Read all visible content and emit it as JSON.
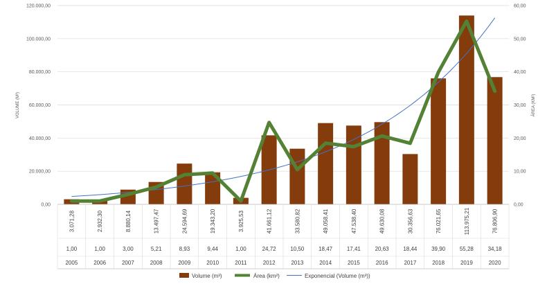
{
  "chart_data": {
    "type": "bar",
    "categories": [
      "2005",
      "2006",
      "2007",
      "2008",
      "2009",
      "2010",
      "2011",
      "2012",
      "2013",
      "2014",
      "2015",
      "2016",
      "2017",
      "2018",
      "2019",
      "2020"
    ],
    "series": [
      {
        "name": "Volume (m³)",
        "type": "bar",
        "axis": "left",
        "color": "#843C0C",
        "values": [
          3071.28,
          2932.3,
          8880.14,
          13497.47,
          24594.69,
          19343.2,
          3925.53,
          41661.12,
          33580.82,
          49058.41,
          47538.4,
          49630.08,
          30356.63,
          76021.65,
          113975.21,
          76806.9
        ],
        "labels": [
          "3.071,28",
          "2.932,30",
          "8.880,14",
          "13.497,47",
          "24.594,69",
          "19.343,20",
          "3.925,53",
          "41.661,12",
          "33.580,82",
          "49.058,41",
          "47.538,40",
          "49.630,08",
          "30.356,63",
          "76.021,65",
          "113.975,21",
          "76.806,90"
        ]
      },
      {
        "name": "Área (km²)",
        "type": "line",
        "axis": "right",
        "color": "#548235",
        "values": [
          1.0,
          1.0,
          3.0,
          5.21,
          8.93,
          9.44,
          1.0,
          24.72,
          10.5,
          18.47,
          17.41,
          20.63,
          18.44,
          39.9,
          55.28,
          34.18
        ],
        "labels": [
          "1,00",
          "1,00",
          "3,00",
          "5,21",
          "8,93",
          "9,44",
          "1,00",
          "24,72",
          "10,50",
          "18,47",
          "17,41",
          "20,63",
          "18,44",
          "39,90",
          "55,28",
          "34,18"
        ]
      },
      {
        "name": "Exponencial (Volume (m³))",
        "type": "trendline",
        "axis": "left",
        "color": "#4472C4"
      }
    ],
    "y_left": {
      "label": "VOLUME (M³)",
      "range": [
        0,
        120000
      ],
      "ticks": [
        "0,00",
        "20.000,00",
        "40.000,00",
        "60.000,00",
        "80.000,00",
        "100.000,00",
        "120.000,00"
      ]
    },
    "y_right": {
      "label": "ÁREA (KM²)",
      "range": [
        0,
        60
      ],
      "ticks": [
        "0,00",
        "10,00",
        "20,00",
        "30,00",
        "40,00",
        "50,00",
        "60,00"
      ]
    },
    "grid": "horizontal",
    "legend_position": "bottom"
  }
}
